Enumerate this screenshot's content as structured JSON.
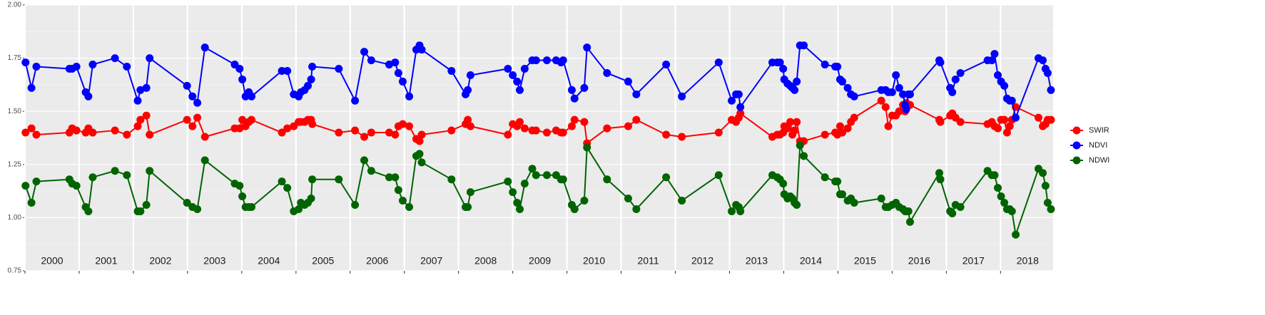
{
  "chart_data": {
    "type": "line",
    "x": [
      2000.01,
      2000.12,
      2000.21,
      2000.82,
      2000.87,
      2000.95,
      2001.12,
      2001.17,
      2001.25,
      2001.66,
      2001.88,
      2002.08,
      2002.13,
      2002.24,
      2002.3,
      2002.99,
      2003.09,
      2003.18,
      2003.32,
      2003.87,
      2003.96,
      2004.01,
      2004.07,
      2004.13,
      2004.18,
      2004.74,
      2004.84,
      2004.96,
      2005.05,
      2005.09,
      2005.16,
      2005.22,
      2005.28,
      2005.3,
      2005.79,
      2006.09,
      2006.26,
      2006.39,
      2006.72,
      2006.83,
      2006.89,
      2006.97,
      2007.09,
      2007.22,
      2007.28,
      2007.32,
      2007.87,
      2008.13,
      2008.17,
      2008.22,
      2008.91,
      2009.0,
      2009.08,
      2009.13,
      2009.22,
      2009.36,
      2009.43,
      2009.63,
      2009.8,
      2009.89,
      2009.93,
      2010.09,
      2010.14,
      2010.32,
      2010.37,
      2010.74,
      2011.13,
      2011.28,
      2011.83,
      2012.12,
      2012.8,
      2013.04,
      2013.12,
      2013.17,
      2013.2,
      2013.79,
      2013.88,
      2013.93,
      2013.99,
      2014.01,
      2014.07,
      2014.12,
      2014.16,
      2014.2,
      2014.24,
      2014.3,
      2014.37,
      2014.76,
      2014.95,
      2014.99,
      2015.04,
      2015.08,
      2015.18,
      2015.24,
      2015.3,
      2015.8,
      2015.88,
      2015.93,
      2016.0,
      2016.07,
      2016.13,
      2016.2,
      2016.24,
      2016.26,
      2016.3,
      2016.33,
      2016.87,
      2016.89,
      2017.07,
      2017.11,
      2017.17,
      2017.26,
      2017.76,
      2017.84,
      2017.89,
      2017.95,
      2018.01,
      2018.07,
      2018.12,
      2018.17,
      2018.21,
      2018.28,
      2018.7,
      2018.78,
      2018.83,
      2018.87,
      2018.93
    ],
    "series": [
      {
        "name": "SWIR",
        "color": "#ff0000",
        "values": [
          1.4,
          1.42,
          1.39,
          1.4,
          1.42,
          1.41,
          1.4,
          1.42,
          1.4,
          1.41,
          1.39,
          1.43,
          1.46,
          1.48,
          1.39,
          1.46,
          1.43,
          1.47,
          1.38,
          1.42,
          1.42,
          1.46,
          1.43,
          1.45,
          1.46,
          1.4,
          1.42,
          1.43,
          1.45,
          1.45,
          1.45,
          1.46,
          1.46,
          1.44,
          1.4,
          1.41,
          1.38,
          1.4,
          1.4,
          1.39,
          1.43,
          1.44,
          1.43,
          1.37,
          1.36,
          1.39,
          1.41,
          1.44,
          1.46,
          1.43,
          1.39,
          1.44,
          1.43,
          1.45,
          1.42,
          1.41,
          1.41,
          1.4,
          1.41,
          1.4,
          1.4,
          1.43,
          1.46,
          1.45,
          1.35,
          1.42,
          1.43,
          1.46,
          1.39,
          1.38,
          1.4,
          1.46,
          1.45,
          1.47,
          1.49,
          1.38,
          1.39,
          1.39,
          1.4,
          1.43,
          1.42,
          1.45,
          1.39,
          1.41,
          1.45,
          1.36,
          1.36,
          1.39,
          1.4,
          1.39,
          1.43,
          1.4,
          1.42,
          1.45,
          1.47,
          1.55,
          1.52,
          1.43,
          1.48,
          1.48,
          1.5,
          1.53,
          1.5,
          1.54,
          1.53,
          1.53,
          1.46,
          1.45,
          1.48,
          1.49,
          1.47,
          1.45,
          1.44,
          1.45,
          1.43,
          1.42,
          1.46,
          1.46,
          1.4,
          1.43,
          1.46,
          1.52,
          1.47,
          1.43,
          1.44,
          1.46,
          1.46
        ]
      },
      {
        "name": "NDVI",
        "color": "#0000ff",
        "values": [
          1.73,
          1.61,
          1.71,
          1.7,
          1.7,
          1.71,
          1.59,
          1.57,
          1.72,
          1.75,
          1.71,
          1.55,
          1.6,
          1.61,
          1.75,
          1.62,
          1.57,
          1.54,
          1.8,
          1.72,
          1.7,
          1.65,
          1.57,
          1.59,
          1.57,
          1.69,
          1.69,
          1.58,
          1.57,
          1.59,
          1.6,
          1.62,
          1.65,
          1.71,
          1.7,
          1.55,
          1.78,
          1.74,
          1.72,
          1.73,
          1.68,
          1.64,
          1.57,
          1.79,
          1.81,
          1.79,
          1.69,
          1.58,
          1.6,
          1.67,
          1.7,
          1.67,
          1.64,
          1.6,
          1.7,
          1.74,
          1.74,
          1.74,
          1.74,
          1.73,
          1.74,
          1.6,
          1.56,
          1.61,
          1.8,
          1.68,
          1.64,
          1.58,
          1.72,
          1.57,
          1.73,
          1.55,
          1.58,
          1.58,
          1.52,
          1.73,
          1.73,
          1.73,
          1.7,
          1.65,
          1.63,
          1.62,
          1.61,
          1.6,
          1.64,
          1.81,
          1.81,
          1.72,
          1.71,
          1.71,
          1.65,
          1.64,
          1.61,
          1.58,
          1.57,
          1.6,
          1.6,
          1.59,
          1.59,
          1.67,
          1.61,
          1.58,
          1.53,
          1.51,
          1.58,
          1.58,
          1.74,
          1.73,
          1.61,
          1.59,
          1.65,
          1.68,
          1.74,
          1.74,
          1.77,
          1.67,
          1.64,
          1.62,
          1.56,
          1.55,
          1.55,
          1.47,
          1.75,
          1.74,
          1.7,
          1.68,
          1.6
        ]
      },
      {
        "name": "NDWI",
        "color": "#006400",
        "values": [
          1.15,
          1.07,
          1.17,
          1.18,
          1.16,
          1.15,
          1.05,
          1.03,
          1.19,
          1.22,
          1.2,
          1.03,
          1.03,
          1.06,
          1.22,
          1.07,
          1.05,
          1.04,
          1.27,
          1.16,
          1.15,
          1.1,
          1.05,
          1.05,
          1.05,
          1.17,
          1.14,
          1.03,
          1.04,
          1.07,
          1.06,
          1.07,
          1.09,
          1.18,
          1.18,
          1.06,
          1.27,
          1.22,
          1.19,
          1.19,
          1.13,
          1.08,
          1.05,
          1.29,
          1.3,
          1.26,
          1.18,
          1.05,
          1.05,
          1.12,
          1.17,
          1.12,
          1.07,
          1.04,
          1.16,
          1.23,
          1.2,
          1.2,
          1.2,
          1.18,
          1.18,
          1.06,
          1.04,
          1.08,
          1.33,
          1.18,
          1.09,
          1.04,
          1.19,
          1.08,
          1.2,
          1.03,
          1.06,
          1.05,
          1.03,
          1.2,
          1.19,
          1.18,
          1.16,
          1.11,
          1.09,
          1.1,
          1.09,
          1.07,
          1.06,
          1.34,
          1.29,
          1.19,
          1.17,
          1.17,
          1.11,
          1.11,
          1.08,
          1.09,
          1.07,
          1.09,
          1.05,
          1.05,
          1.06,
          1.07,
          1.05,
          1.04,
          1.03,
          1.03,
          1.03,
          0.98,
          1.21,
          1.18,
          1.03,
          1.02,
          1.06,
          1.05,
          1.22,
          1.2,
          1.2,
          1.14,
          1.1,
          1.07,
          1.04,
          1.04,
          1.03,
          0.92,
          1.23,
          1.21,
          1.15,
          1.07,
          1.04
        ]
      }
    ],
    "xlim": [
      2000,
      2018.97
    ],
    "ylim": [
      0.75,
      2.0
    ],
    "xticks": [
      2000,
      2001,
      2002,
      2003,
      2004,
      2005,
      2006,
      2007,
      2008,
      2009,
      2010,
      2011,
      2012,
      2013,
      2014,
      2015,
      2016,
      2017,
      2018
    ],
    "yticks": [
      {
        "value": 0.75,
        "label": "0.75"
      },
      {
        "value": 1.0,
        "label": "1.00"
      },
      {
        "value": 1.25,
        "label": "1.25"
      },
      {
        "value": 1.5,
        "label": "1.50"
      },
      {
        "value": 1.75,
        "label": "1.75"
      },
      {
        "value": 2.0,
        "label": "2.00"
      }
    ],
    "grid": true,
    "legend": "right"
  }
}
